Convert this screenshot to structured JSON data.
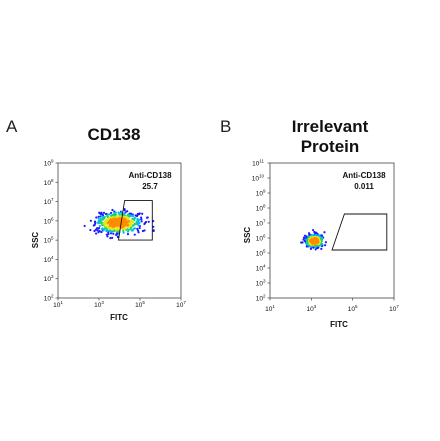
{
  "chart_data": [
    {
      "type": "scatter",
      "panel": "A",
      "title": [
        "CD138"
      ],
      "xlabel": "FITC",
      "ylabel": "SSC",
      "x_scale": "log",
      "y_scale": "log",
      "xlim": [
        10,
        10000000
      ],
      "ylim": [
        100,
        1000000000
      ],
      "x_ticks": [
        1,
        3,
        5,
        7
      ],
      "y_ticks": [
        2,
        3,
        4,
        5,
        6,
        7,
        8,
        9
      ],
      "gate": {
        "label": "Anti-CD138",
        "value": "25.7",
        "polygon_log10": [
          [
            4.25,
            7.05
          ],
          [
            5.6,
            7.05
          ],
          [
            5.6,
            5.0
          ],
          [
            3.95,
            5.0
          ]
        ]
      },
      "population": {
        "center_log10_x": 3.95,
        "center_log10_y": 5.9,
        "spread_log10_x": 0.55,
        "spread_log10_y": 0.28
      }
    },
    {
      "type": "scatter",
      "panel": "B",
      "title": [
        "Irrelevant",
        "Protein"
      ],
      "xlabel": "FITC",
      "ylabel": "SSC",
      "x_scale": "log",
      "y_scale": "log",
      "xlim": [
        10,
        10000000
      ],
      "ylim": [
        100,
        100000000000
      ],
      "x_ticks": [
        1,
        3,
        5,
        7
      ],
      "y_ticks": [
        2,
        3,
        4,
        5,
        6,
        7,
        8,
        9,
        10,
        11
      ],
      "gate": {
        "label": "Anti-CD138",
        "value": "0.011",
        "polygon_log10": [
          [
            4.6,
            7.6
          ],
          [
            6.65,
            7.6
          ],
          [
            6.65,
            5.2
          ],
          [
            4.0,
            5.2
          ]
        ]
      },
      "population": {
        "center_log10_x": 3.15,
        "center_log10_y": 5.8,
        "spread_log10_x": 0.22,
        "spread_log10_y": 0.22
      }
    }
  ]
}
